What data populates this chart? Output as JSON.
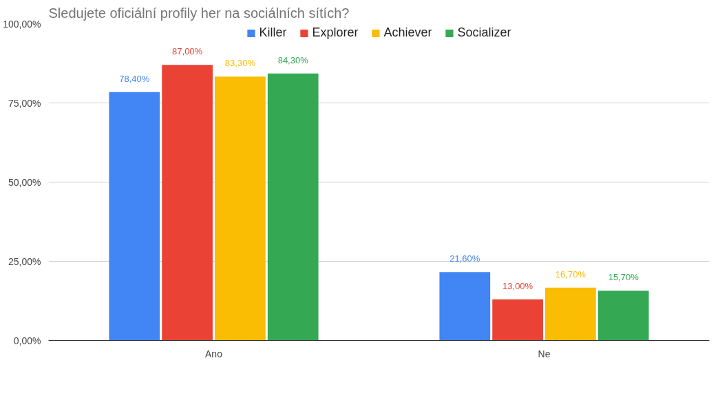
{
  "chart_data": {
    "type": "bar",
    "title": "Sledujete oficiální profily her na sociálních sítích?",
    "categories": [
      "Ano",
      "Ne"
    ],
    "series": [
      {
        "name": "Killer",
        "color": "#4285f4",
        "values": [
          78.4,
          21.6
        ],
        "value_labels": [
          "78,40%",
          "21,60%"
        ]
      },
      {
        "name": "Explorer",
        "color": "#ea4335",
        "values": [
          87.0,
          13.0
        ],
        "value_labels": [
          "87,00%",
          "13,00%"
        ]
      },
      {
        "name": "Achiever",
        "color": "#fbbc04",
        "values": [
          83.3,
          16.7
        ],
        "value_labels": [
          "83,30%",
          "16,70%"
        ]
      },
      {
        "name": "Socializer",
        "color": "#34a853",
        "values": [
          84.3,
          15.7
        ],
        "value_labels": [
          "84,30%",
          "15,70%"
        ]
      }
    ],
    "ylim": [
      0,
      100
    ],
    "yticks": [
      {
        "value": 0,
        "label": "0,00%"
      },
      {
        "value": 25,
        "label": "25,00%"
      },
      {
        "value": 50,
        "label": "50,00%"
      },
      {
        "value": 75,
        "label": "75,00%"
      },
      {
        "value": 100,
        "label": "100,00%"
      }
    ],
    "grid": "y",
    "legend": "top"
  }
}
